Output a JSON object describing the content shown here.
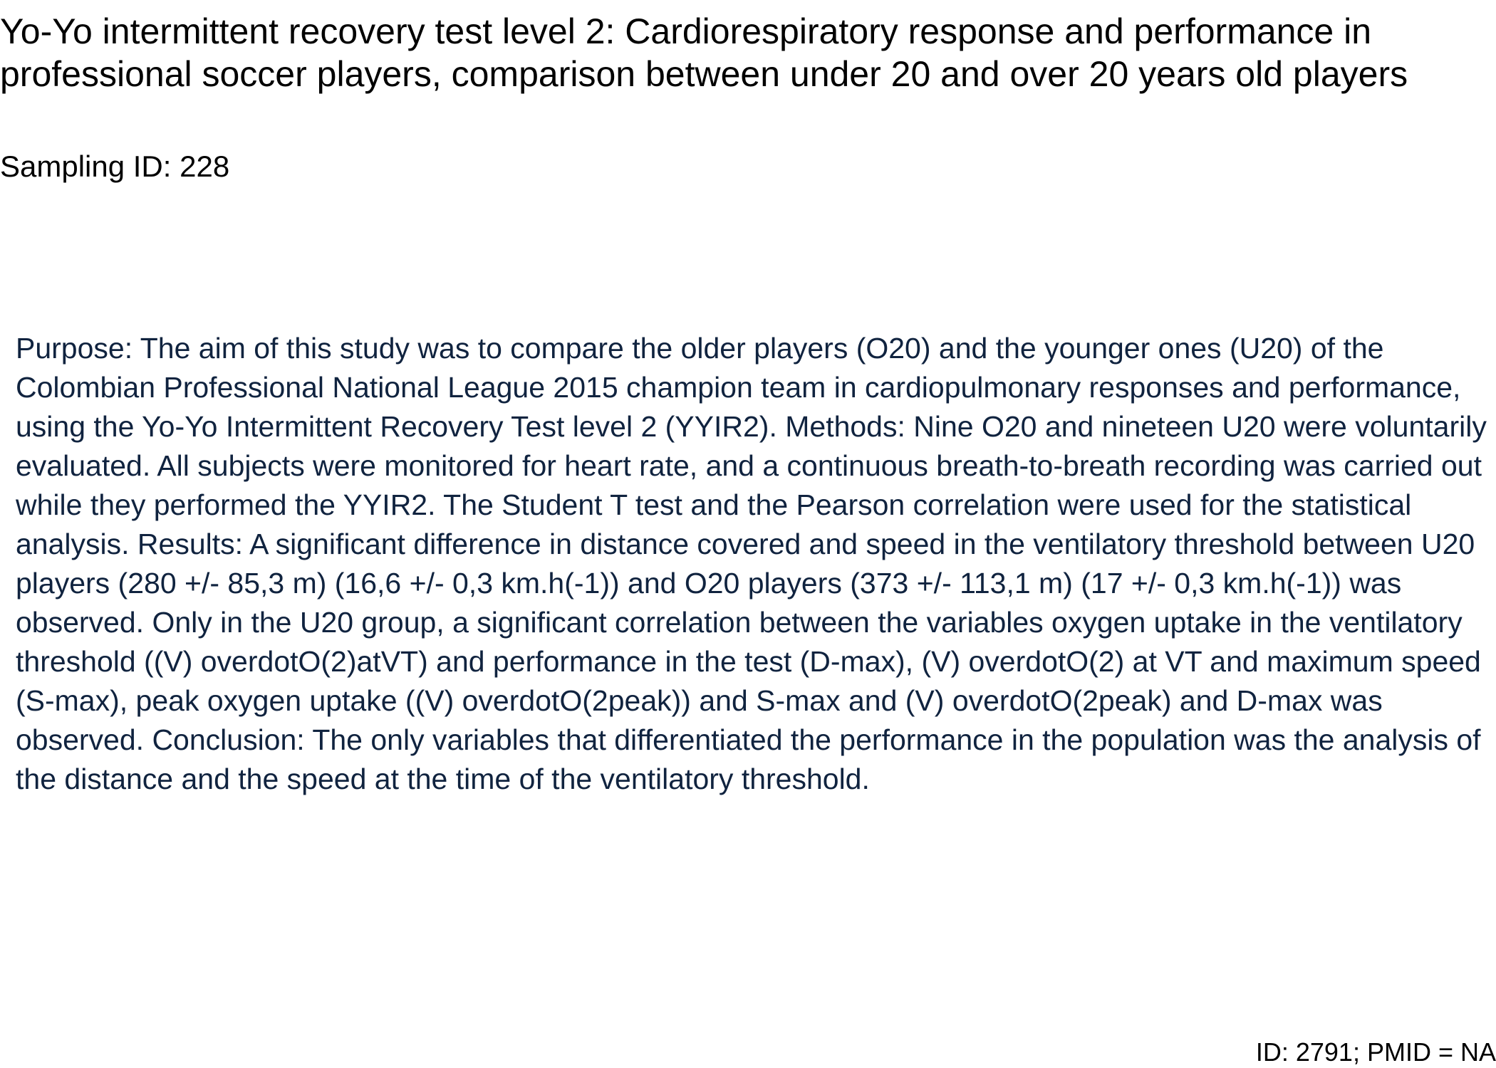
{
  "document": {
    "title": "Yo-Yo intermittent recovery test level 2: Cardiorespiratory response and performance in professional soccer players, comparison between under 20 and over 20 years old players",
    "sampling_id": "Sampling ID: 228",
    "abstract": "Purpose: The aim of this study was to compare the older players (O20) and the younger ones (U20) of the Colombian Professional National League 2015 champion team in cardiopulmonary responses and performance, using the Yo-Yo Intermittent Recovery Test level 2 (YYIR2). Methods: Nine O20 and nineteen U20 were voluntarily evaluated. All subjects were monitored for heart rate, and a continuous breath-to-breath recording was carried out while they performed the YYIR2. The Student T test and the Pearson correlation were used for the statistical analysis. Results: A significant difference in distance covered and speed in the ventilatory threshold between U20 players (280 +/- 85,3 m) (16,6 +/- 0,3 km.h(-1)) and O20 players (373 +/- 113,1 m) (17 +/- 0,3 km.h(-1)) was observed. Only in the U20 group, a significant correlation between the variables oxygen uptake in the ventilatory threshold ((V) overdotO(2)atVT) and performance in the test (D-max), (V) overdotO(2) at VT and maximum speed (S-max), peak oxygen uptake ((V) overdotO(2peak)) and S-max and (V) overdotO(2peak) and D-max was observed. Conclusion: The only variables that differentiated the performance in the population was the analysis of the distance and the speed at the time of the ventilatory threshold.",
    "footer_id": "ID: 2791; PMID = NA"
  }
}
